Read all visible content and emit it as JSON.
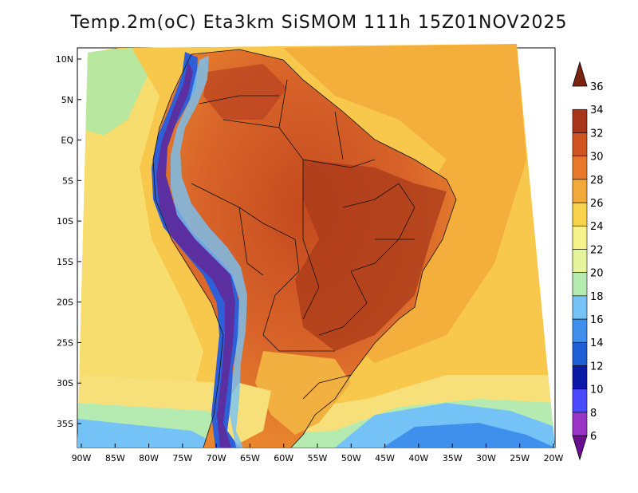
{
  "title": "Temp.2m(oC) Eta3km SiSMOM 111h 15Z01NOV2025",
  "lat_ticks": [
    "10N",
    "5N",
    "EQ",
    "5S",
    "10S",
    "15S",
    "20S",
    "25S",
    "30S",
    "35S"
  ],
  "lon_ticks": [
    "90W",
    "85W",
    "80W",
    "75W",
    "70W",
    "65W",
    "60W",
    "55W",
    "50W",
    "45W",
    "40W",
    "35W",
    "30W",
    "25W",
    "20W"
  ],
  "colorbar": {
    "labels": [
      "6",
      "8",
      "10",
      "12",
      "14",
      "16",
      "18",
      "20",
      "22",
      "24",
      "26",
      "28",
      "30",
      "32",
      "34",
      "36"
    ],
    "colors": [
      "#6a0d91",
      "#9a34c6",
      "#4a4aff",
      "#0a1aa6",
      "#1e5fd6",
      "#3f8fec",
      "#75c3f6",
      "#b5ebb0",
      "#e6f59b",
      "#f8f28a",
      "#f7d24a",
      "#f2a93a",
      "#e8782a",
      "#cf5420",
      "#a8341a",
      "#7a2310"
    ]
  },
  "colors": {
    "ocean_warm": "#f7c44a",
    "ocean_mid": "#f7e07a",
    "ocean_cool": "#bdeca0",
    "land_hot": "#d65a22",
    "land_hotter": "#b23f1c",
    "andes_cold": "#5b2fa0",
    "andes_blue": "#2f5fd6"
  }
}
